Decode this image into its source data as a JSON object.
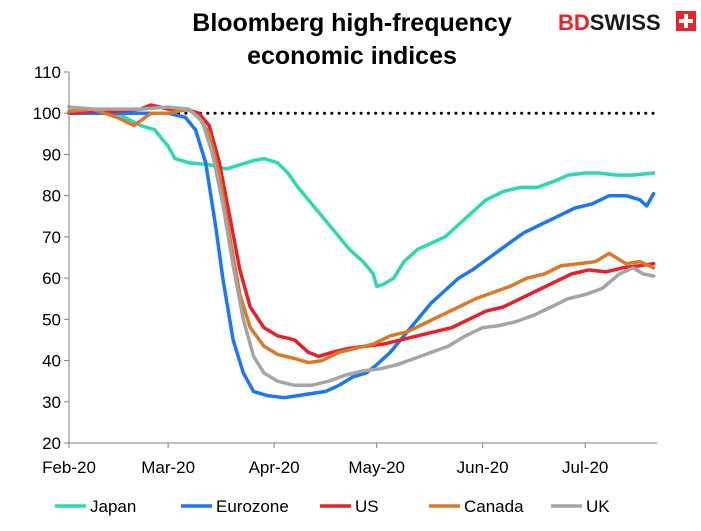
{
  "logo": {
    "part1": "BD",
    "part2": "SWISS"
  },
  "chart_data": {
    "type": "line",
    "title": "Bloomberg high-frequency economic indices",
    "title_lines": [
      "Bloomberg high-frequency",
      "economic indices"
    ],
    "xlabel": "",
    "ylabel": "",
    "ylim": [
      20,
      110
    ],
    "yticks": [
      20,
      30,
      40,
      50,
      60,
      70,
      80,
      90,
      100,
      110
    ],
    "xlim": [
      "2020-02-01",
      "2020-07-22"
    ],
    "xticks": [
      {
        "date": "2020-02-01",
        "label": "Feb-20"
      },
      {
        "date": "2020-03-01",
        "label": "Mar-20"
      },
      {
        "date": "2020-04-01",
        "label": "Apr-20"
      },
      {
        "date": "2020-05-01",
        "label": "May-20"
      },
      {
        "date": "2020-06-01",
        "label": "Jun-20"
      },
      {
        "date": "2020-07-01",
        "label": "Jul-20"
      }
    ],
    "grid": false,
    "legend": "bottom",
    "reference_line": {
      "y": 100,
      "x_start": "2020-02-01",
      "x_end": "2020-07-21",
      "style": "dotted",
      "color": "#000000"
    },
    "series": [
      {
        "name": "Japan",
        "color": "#2ed8b0",
        "points": [
          [
            "2020-02-01",
            100
          ],
          [
            "2020-02-08",
            100
          ],
          [
            "2020-02-15",
            100
          ],
          [
            "2020-02-22",
            97
          ],
          [
            "2020-02-26",
            96
          ],
          [
            "2020-03-01",
            92
          ],
          [
            "2020-03-03",
            89
          ],
          [
            "2020-03-07",
            88
          ],
          [
            "2020-03-13",
            87.5
          ],
          [
            "2020-03-18",
            86.5
          ],
          [
            "2020-03-22",
            87.5
          ],
          [
            "2020-03-26",
            88.5
          ],
          [
            "2020-03-29",
            89
          ],
          [
            "2020-04-02",
            88
          ],
          [
            "2020-04-05",
            85.5
          ],
          [
            "2020-04-08",
            82
          ],
          [
            "2020-04-11",
            79
          ],
          [
            "2020-04-15",
            75
          ],
          [
            "2020-04-19",
            71
          ],
          [
            "2020-04-23",
            67
          ],
          [
            "2020-04-27",
            64
          ],
          [
            "2020-04-30",
            61
          ],
          [
            "2020-05-01",
            58
          ],
          [
            "2020-05-03",
            58.5
          ],
          [
            "2020-05-06",
            60
          ],
          [
            "2020-05-09",
            64
          ],
          [
            "2020-05-13",
            67
          ],
          [
            "2020-05-17",
            68.5
          ],
          [
            "2020-05-21",
            70
          ],
          [
            "2020-05-25",
            73
          ],
          [
            "2020-05-29",
            76
          ],
          [
            "2020-06-02",
            79
          ],
          [
            "2020-06-07",
            81
          ],
          [
            "2020-06-12",
            82
          ],
          [
            "2020-06-17",
            82
          ],
          [
            "2020-06-22",
            83.5
          ],
          [
            "2020-06-26",
            85
          ],
          [
            "2020-07-01",
            85.5
          ],
          [
            "2020-07-05",
            85.5
          ],
          [
            "2020-07-10",
            85
          ],
          [
            "2020-07-15",
            85
          ],
          [
            "2020-07-21",
            85.5
          ]
        ]
      },
      {
        "name": "Eurozone",
        "color": "#1f77f0",
        "points": [
          [
            "2020-02-01",
            100
          ],
          [
            "2020-02-08",
            100
          ],
          [
            "2020-02-15",
            100
          ],
          [
            "2020-02-22",
            100
          ],
          [
            "2020-03-01",
            100
          ],
          [
            "2020-03-06",
            99
          ],
          [
            "2020-03-09",
            96
          ],
          [
            "2020-03-12",
            88
          ],
          [
            "2020-03-15",
            72
          ],
          [
            "2020-03-17",
            60
          ],
          [
            "2020-03-20",
            45
          ],
          [
            "2020-03-23",
            37
          ],
          [
            "2020-03-26",
            32.5
          ],
          [
            "2020-03-30",
            31.5
          ],
          [
            "2020-04-04",
            31
          ],
          [
            "2020-04-08",
            31.5
          ],
          [
            "2020-04-12",
            32
          ],
          [
            "2020-04-16",
            32.5
          ],
          [
            "2020-04-20",
            34
          ],
          [
            "2020-04-24",
            36
          ],
          [
            "2020-04-28",
            37
          ],
          [
            "2020-05-01",
            39
          ],
          [
            "2020-05-05",
            42
          ],
          [
            "2020-05-09",
            46
          ],
          [
            "2020-05-13",
            50
          ],
          [
            "2020-05-17",
            54
          ],
          [
            "2020-05-21",
            57
          ],
          [
            "2020-05-25",
            60
          ],
          [
            "2020-05-29",
            62
          ],
          [
            "2020-06-03",
            65
          ],
          [
            "2020-06-08",
            68
          ],
          [
            "2020-06-13",
            71
          ],
          [
            "2020-06-18",
            73
          ],
          [
            "2020-06-23",
            75
          ],
          [
            "2020-06-28",
            77
          ],
          [
            "2020-07-03",
            78
          ],
          [
            "2020-07-08",
            80
          ],
          [
            "2020-07-13",
            80
          ],
          [
            "2020-07-17",
            79
          ],
          [
            "2020-07-19",
            77.5
          ],
          [
            "2020-07-21",
            80.5
          ]
        ]
      },
      {
        "name": "US",
        "color": "#e8202a",
        "points": [
          [
            "2020-02-01",
            100
          ],
          [
            "2020-02-08",
            100.5
          ],
          [
            "2020-02-15",
            100.5
          ],
          [
            "2020-02-22",
            101
          ],
          [
            "2020-02-25",
            102
          ],
          [
            "2020-03-01",
            101
          ],
          [
            "2020-03-06",
            101
          ],
          [
            "2020-03-10",
            100
          ],
          [
            "2020-03-13",
            97
          ],
          [
            "2020-03-16",
            88
          ],
          [
            "2020-03-19",
            75
          ],
          [
            "2020-03-22",
            62
          ],
          [
            "2020-03-25",
            53
          ],
          [
            "2020-03-29",
            48
          ],
          [
            "2020-04-02",
            46
          ],
          [
            "2020-04-07",
            45
          ],
          [
            "2020-04-11",
            42
          ],
          [
            "2020-04-14",
            41
          ],
          [
            "2020-04-18",
            42
          ],
          [
            "2020-04-23",
            43
          ],
          [
            "2020-04-28",
            43.5
          ],
          [
            "2020-05-03",
            44
          ],
          [
            "2020-05-08",
            45
          ],
          [
            "2020-05-13",
            46
          ],
          [
            "2020-05-18",
            47
          ],
          [
            "2020-05-23",
            48
          ],
          [
            "2020-05-28",
            50
          ],
          [
            "2020-06-02",
            52
          ],
          [
            "2020-06-07",
            53
          ],
          [
            "2020-06-12",
            55
          ],
          [
            "2020-06-17",
            57
          ],
          [
            "2020-06-22",
            59
          ],
          [
            "2020-06-27",
            61
          ],
          [
            "2020-07-02",
            62
          ],
          [
            "2020-07-07",
            61.5
          ],
          [
            "2020-07-12",
            62.5
          ],
          [
            "2020-07-17",
            63
          ],
          [
            "2020-07-21",
            63.5
          ]
        ]
      },
      {
        "name": "Canada",
        "color": "#d87a2a",
        "points": [
          [
            "2020-02-01",
            100.5
          ],
          [
            "2020-02-08",
            101
          ],
          [
            "2020-02-15",
            99
          ],
          [
            "2020-02-20",
            97
          ],
          [
            "2020-02-25",
            100
          ],
          [
            "2020-03-01",
            100
          ],
          [
            "2020-03-07",
            101
          ],
          [
            "2020-03-10",
            99
          ],
          [
            "2020-03-13",
            95
          ],
          [
            "2020-03-16",
            85
          ],
          [
            "2020-03-19",
            70
          ],
          [
            "2020-03-22",
            56
          ],
          [
            "2020-03-25",
            48
          ],
          [
            "2020-03-29",
            43.5
          ],
          [
            "2020-04-02",
            41.5
          ],
          [
            "2020-04-07",
            40.5
          ],
          [
            "2020-04-11",
            39.5
          ],
          [
            "2020-04-15",
            40
          ],
          [
            "2020-04-20",
            42
          ],
          [
            "2020-04-25",
            43
          ],
          [
            "2020-04-30",
            44
          ],
          [
            "2020-05-05",
            46
          ],
          [
            "2020-05-10",
            47
          ],
          [
            "2020-05-15",
            49
          ],
          [
            "2020-05-20",
            51
          ],
          [
            "2020-05-25",
            53
          ],
          [
            "2020-05-30",
            55
          ],
          [
            "2020-06-04",
            56.5
          ],
          [
            "2020-06-09",
            58
          ],
          [
            "2020-06-14",
            60
          ],
          [
            "2020-06-19",
            61
          ],
          [
            "2020-06-24",
            63
          ],
          [
            "2020-06-29",
            63.5
          ],
          [
            "2020-07-04",
            64
          ],
          [
            "2020-07-08",
            66
          ],
          [
            "2020-07-13",
            63.5
          ],
          [
            "2020-07-17",
            64
          ],
          [
            "2020-07-21",
            62.5
          ]
        ]
      },
      {
        "name": "UK",
        "color": "#a5a5a5",
        "points": [
          [
            "2020-02-01",
            101.5
          ],
          [
            "2020-02-08",
            101
          ],
          [
            "2020-02-15",
            101
          ],
          [
            "2020-02-22",
            101
          ],
          [
            "2020-03-01",
            101.5
          ],
          [
            "2020-03-07",
            101
          ],
          [
            "2020-03-11",
            98
          ],
          [
            "2020-03-14",
            90
          ],
          [
            "2020-03-17",
            78
          ],
          [
            "2020-03-20",
            63
          ],
          [
            "2020-03-23",
            50
          ],
          [
            "2020-03-26",
            41
          ],
          [
            "2020-03-29",
            37
          ],
          [
            "2020-04-02",
            35
          ],
          [
            "2020-04-07",
            34
          ],
          [
            "2020-04-12",
            34
          ],
          [
            "2020-04-17",
            35
          ],
          [
            "2020-04-22",
            36.5
          ],
          [
            "2020-04-27",
            37.5
          ],
          [
            "2020-05-02",
            38
          ],
          [
            "2020-05-07",
            39
          ],
          [
            "2020-05-12",
            40.5
          ],
          [
            "2020-05-17",
            42
          ],
          [
            "2020-05-22",
            43.5
          ],
          [
            "2020-05-27",
            46
          ],
          [
            "2020-06-01",
            48
          ],
          [
            "2020-06-06",
            48.5
          ],
          [
            "2020-06-11",
            49.5
          ],
          [
            "2020-06-16",
            51
          ],
          [
            "2020-06-21",
            53
          ],
          [
            "2020-06-26",
            55
          ],
          [
            "2020-07-01",
            56
          ],
          [
            "2020-07-06",
            57.5
          ],
          [
            "2020-07-11",
            61
          ],
          [
            "2020-07-15",
            62.5
          ],
          [
            "2020-07-18",
            61
          ],
          [
            "2020-07-21",
            60.5
          ]
        ]
      }
    ]
  }
}
